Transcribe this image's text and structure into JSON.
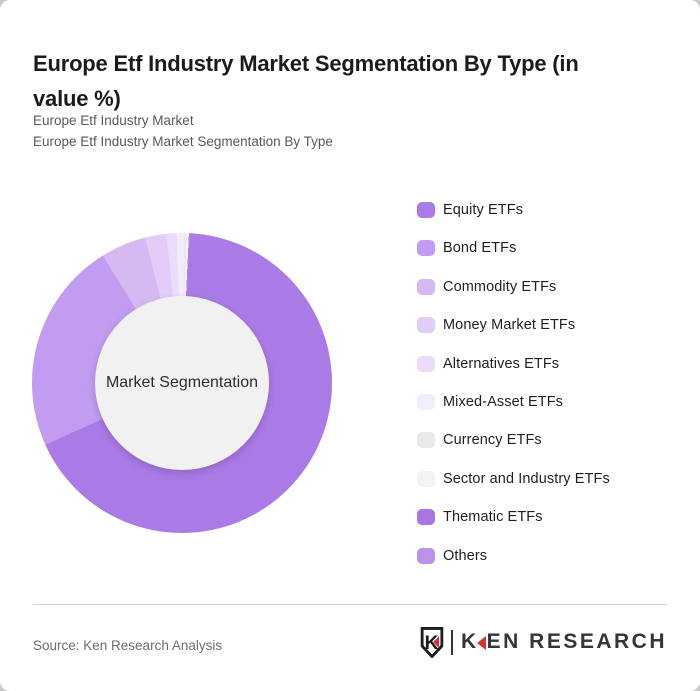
{
  "header": {
    "title": "Europe Etf Industry Market Segmentation By Type (in\nvalue %)",
    "subtitle_line1": "Europe Etf Industry Market",
    "subtitle_line2": "Europe Etf Industry Market Segmentation By Type"
  },
  "chart_data": {
    "type": "pie",
    "variant": "donut",
    "title": "Europe Etf Industry Market Segmentation By Type (in value %)",
    "units": "%",
    "center_label": "Market Segmentation",
    "legend_position": "right",
    "start_angle_deg": 3,
    "hole_color": "#f1f1f1",
    "segments": [
      {
        "label": "Equity ETFs",
        "value": 67.4,
        "color": "#aa7ae6"
      },
      {
        "label": "Bond ETFs",
        "value": 22.9,
        "color": "#c19cf0"
      },
      {
        "label": "Commodity ETFs",
        "value": 4.9,
        "color": "#d5b9f3"
      },
      {
        "label": "Money Market ETFs",
        "value": 2.3,
        "color": "#e1cdf8"
      },
      {
        "label": "Alternatives ETFs",
        "value": 1.1,
        "color": "#eadcfa"
      },
      {
        "label": "Mixed-Asset ETFs",
        "value": 0.8,
        "color": "#f3ecfd"
      },
      {
        "label": "Currency ETFs",
        "value": 0.25,
        "color": "#e9e9e9"
      },
      {
        "label": "Sector and Industry ETFs",
        "value": 0.25,
        "color": "#f3f3f3"
      },
      {
        "label": "Thematic ETFs",
        "value": 0.05,
        "color": "#a875e2"
      },
      {
        "label": "Others",
        "value": 0.05,
        "color": "#bb91ec"
      }
    ]
  },
  "footer": {
    "source": "Source: Ken Research Analysis",
    "brand": "KEN RESEARCH",
    "brand_red": "#c63a31"
  }
}
